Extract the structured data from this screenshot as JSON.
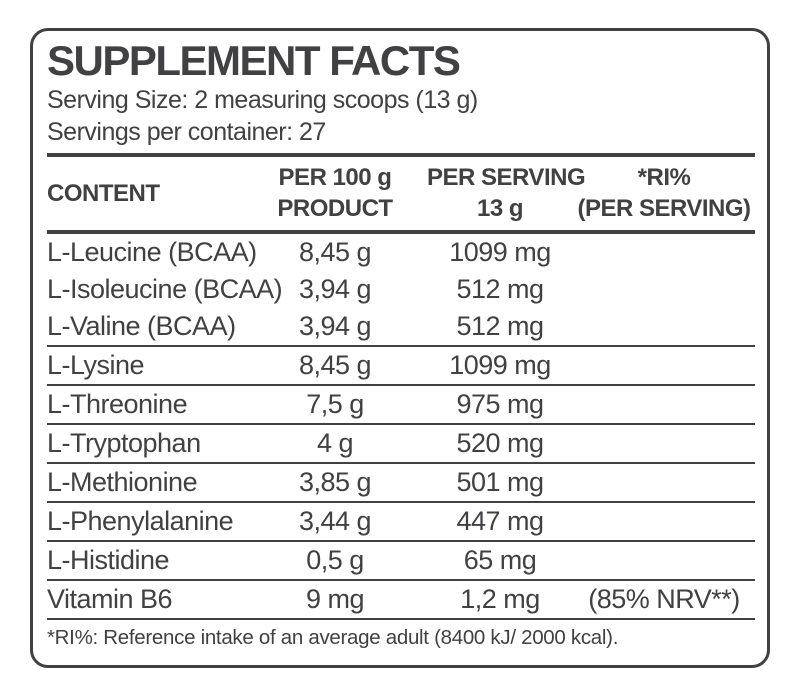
{
  "panel": {
    "title": "SUPPLEMENT FACTS",
    "serving_size": "Serving Size: 2 measuring scoops (13 g)",
    "servings_per_container": "Servings per container: 27"
  },
  "table": {
    "headers": {
      "content": "CONTENT",
      "per_100g_line1": "PER 100 g",
      "per_100g_line2": "PRODUCT",
      "per_serving_line1": "PER SERVING",
      "per_serving_line2": "13 g",
      "ri_line1": "*RI%",
      "ri_line2": "(PER SERVING)"
    },
    "rows": [
      {
        "name": "L-Leucine (BCAA)",
        "per_100g": "8,45 g",
        "per_serving": "1099 mg",
        "ri": "",
        "separator_above": false
      },
      {
        "name": "L-Isoleucine (BCAA)",
        "per_100g": "3,94 g",
        "per_serving": "512 mg",
        "ri": "",
        "separator_above": false
      },
      {
        "name": "L-Valine (BCAA)",
        "per_100g": "3,94 g",
        "per_serving": "512 mg",
        "ri": "",
        "separator_above": false
      },
      {
        "name": "L-Lysine",
        "per_100g": "8,45 g",
        "per_serving": "1099 mg",
        "ri": "",
        "separator_above": true
      },
      {
        "name": "L-Threonine",
        "per_100g": "7,5 g",
        "per_serving": "975 mg",
        "ri": "",
        "separator_above": true
      },
      {
        "name": "L-Tryptophan",
        "per_100g": "4 g",
        "per_serving": "520 mg",
        "ri": "",
        "separator_above": true
      },
      {
        "name": "L-Methionine",
        "per_100g": "3,85 g",
        "per_serving": "501 mg",
        "ri": "",
        "separator_above": true
      },
      {
        "name": "L-Phenylalanine",
        "per_100g": "3,44 g",
        "per_serving": "447 mg",
        "ri": "",
        "separator_above": true
      },
      {
        "name": "L-Histidine",
        "per_100g": "0,5 g",
        "per_serving": "65 mg",
        "ri": "",
        "separator_above": true
      },
      {
        "name": "Vitamin B6",
        "per_100g": "9 mg",
        "per_serving": "1,2 mg",
        "ri": "(85% NRV**)",
        "separator_above": true
      }
    ]
  },
  "footnote": "*RI%: Reference intake of an average adult (8400 kJ/ 2000 kcal).",
  "colors": {
    "text": "#414042",
    "line": "#414042",
    "background": "#ffffff"
  }
}
